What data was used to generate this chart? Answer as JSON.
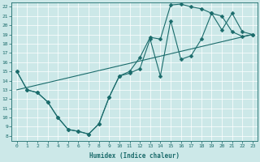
{
  "xlabel": "Humidex (Indice chaleur)",
  "bg_color": "#cce8e8",
  "line_color": "#1a6b6b",
  "xlim": [
    -0.5,
    23.5
  ],
  "ylim": [
    7.5,
    22.5
  ],
  "xticks": [
    0,
    1,
    2,
    3,
    4,
    5,
    6,
    7,
    8,
    9,
    10,
    11,
    12,
    13,
    14,
    15,
    16,
    17,
    18,
    19,
    20,
    21,
    22,
    23
  ],
  "yticks": [
    8,
    9,
    10,
    11,
    12,
    13,
    14,
    15,
    16,
    17,
    18,
    19,
    20,
    21,
    22
  ],
  "line1_x": [
    0,
    1,
    2,
    3,
    4,
    5,
    6,
    7,
    8,
    9,
    10,
    11,
    12,
    13,
    14,
    15,
    16,
    17,
    18,
    19,
    20,
    21,
    22,
    23
  ],
  "line1_y": [
    15,
    13,
    12.7,
    11.7,
    10,
    8.7,
    8.5,
    8.2,
    9.3,
    12.2,
    14.5,
    14.8,
    15.3,
    18.5,
    14.5,
    20.5,
    16.3,
    16.7,
    18.5,
    21.3,
    19.5,
    21.3,
    19.3,
    19.0
  ],
  "line2_x": [
    0,
    1,
    2,
    3,
    4,
    5,
    6,
    7,
    8,
    9,
    10,
    11,
    12,
    13,
    14,
    15,
    16,
    17,
    18,
    19,
    20,
    21,
    22,
    23
  ],
  "line2_y": [
    15,
    13,
    12.7,
    11.7,
    10,
    8.7,
    8.5,
    8.2,
    9.3,
    12.2,
    14.5,
    15.0,
    16.5,
    18.7,
    18.5,
    22.2,
    22.3,
    22.0,
    21.8,
    21.3,
    21.0,
    19.3,
    18.8,
    19.0
  ],
  "line3_x": [
    0,
    23
  ],
  "line3_y": [
    13.0,
    19.0
  ],
  "marker_size": 2.5,
  "linewidth": 0.8
}
